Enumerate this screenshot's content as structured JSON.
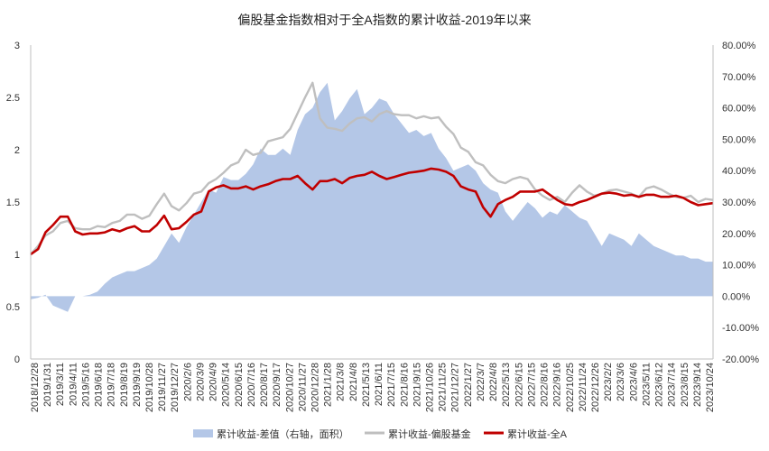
{
  "chart_data": {
    "type": "line",
    "title": "偏股基金指数相对于全A指数的累计收益-2019年以来",
    "y_left": {
      "min": 0,
      "max": 3,
      "ticks": [
        "0",
        "0.5",
        "1",
        "1.5",
        "2",
        "2.5",
        "3"
      ]
    },
    "y_right": {
      "min": -20,
      "max": 80,
      "ticks": [
        "-20.00%",
        "-10.00%",
        "0.00%",
        "10.00%",
        "20.00%",
        "30.00%",
        "40.00%",
        "50.00%",
        "60.00%",
        "70.00%",
        "80.00%"
      ]
    },
    "x_tick_labels": [
      "2018/12/28",
      "2019/1/31",
      "2019/3/11",
      "2019/4/11",
      "2019/5/16",
      "2019/6/18",
      "2019/7/18",
      "2019/8/19",
      "2019/9/19",
      "2019/10/28",
      "2019/11/27",
      "2019/12/27",
      "2020/2/6",
      "2020/3/9",
      "2020/4/9",
      "2020/5/14",
      "2020/6/15",
      "2020/7/16",
      "2020/8/17",
      "2020/9/17",
      "2020/10/27",
      "2020/11/27",
      "2020/12/28",
      "2021/1/28",
      "2021/3/8",
      "2021/4/8",
      "2021/5/13",
      "2021/6/11",
      "2021/7/15",
      "2021/8/16",
      "2021/9/15",
      "2021/10/26",
      "2021/11/25",
      "2021/12/27",
      "2022/1/27",
      "2022/3/7",
      "2022/4/8",
      "2022/5/13",
      "2022/6/15",
      "2022/7/15",
      "2022/8/16",
      "2022/9/16",
      "2022/10/25",
      "2022/11/24",
      "2022/12/26",
      "2023/2/2",
      "2023/3/6",
      "2023/4/6",
      "2023/5/11",
      "2023/6/12",
      "2023/7/14",
      "2023/8/15",
      "2023/9/14",
      "2023/10/24"
    ],
    "series": [
      {
        "name": "累计收益-差值（右轴，面积）",
        "axis": "right",
        "kind": "area",
        "color": "#b4c7e7",
        "values": [
          -1.0,
          -0.5,
          0.5,
          -3.0,
          -4.0,
          -5.0,
          0,
          0,
          0.5,
          1.5,
          4,
          6,
          7,
          8,
          8,
          9,
          10,
          12,
          16,
          20,
          17,
          22,
          26,
          30,
          34,
          33,
          38,
          37,
          37,
          39,
          42,
          47,
          45,
          45,
          47,
          45,
          53,
          58,
          60,
          65,
          68,
          56,
          59,
          63,
          66,
          58,
          60,
          63,
          62,
          58,
          55,
          52,
          53,
          51,
          52,
          47,
          44,
          40,
          41,
          42,
          40,
          36,
          34,
          33,
          27,
          24,
          27,
          30,
          28,
          25,
          27,
          26,
          29,
          27,
          25,
          24,
          20,
          16,
          20,
          19,
          18,
          16,
          20,
          18,
          16,
          15,
          14,
          13,
          13,
          12,
          12,
          11,
          11
        ]
      },
      {
        "name": "累计收益-偏股基金",
        "axis": "left",
        "kind": "line",
        "color": "#bfbfbf",
        "values": [
          1.0,
          1.08,
          1.18,
          1.22,
          1.3,
          1.32,
          1.25,
          1.24,
          1.24,
          1.27,
          1.26,
          1.3,
          1.32,
          1.38,
          1.38,
          1.34,
          1.37,
          1.48,
          1.58,
          1.46,
          1.42,
          1.49,
          1.58,
          1.6,
          1.68,
          1.72,
          1.78,
          1.85,
          1.88,
          2.0,
          1.95,
          1.97,
          2.08,
          2.1,
          2.12,
          2.2,
          2.35,
          2.5,
          2.64,
          2.3,
          2.21,
          2.2,
          2.18,
          2.25,
          2.3,
          2.31,
          2.27,
          2.34,
          2.37,
          2.34,
          2.33,
          2.33,
          2.3,
          2.32,
          2.3,
          2.31,
          2.22,
          2.15,
          2.02,
          1.98,
          1.88,
          1.85,
          1.76,
          1.7,
          1.68,
          1.72,
          1.74,
          1.72,
          1.62,
          1.56,
          1.52,
          1.55,
          1.5,
          1.59,
          1.66,
          1.6,
          1.56,
          1.58,
          1.61,
          1.62,
          1.6,
          1.58,
          1.55,
          1.63,
          1.65,
          1.62,
          1.58,
          1.55,
          1.54,
          1.56,
          1.5,
          1.53,
          1.52
        ]
      },
      {
        "name": "累计收益-全A",
        "axis": "left",
        "kind": "line",
        "color": "#c00000",
        "values": [
          1.0,
          1.05,
          1.21,
          1.28,
          1.36,
          1.36,
          1.22,
          1.19,
          1.2,
          1.2,
          1.21,
          1.24,
          1.22,
          1.25,
          1.27,
          1.22,
          1.22,
          1.28,
          1.37,
          1.24,
          1.25,
          1.31,
          1.38,
          1.41,
          1.6,
          1.64,
          1.66,
          1.63,
          1.63,
          1.65,
          1.62,
          1.65,
          1.67,
          1.7,
          1.72,
          1.72,
          1.75,
          1.68,
          1.62,
          1.7,
          1.7,
          1.72,
          1.68,
          1.73,
          1.75,
          1.76,
          1.79,
          1.75,
          1.72,
          1.74,
          1.76,
          1.78,
          1.79,
          1.8,
          1.82,
          1.81,
          1.79,
          1.75,
          1.65,
          1.62,
          1.6,
          1.45,
          1.36,
          1.48,
          1.52,
          1.55,
          1.6,
          1.6,
          1.6,
          1.62,
          1.57,
          1.52,
          1.48,
          1.47,
          1.5,
          1.52,
          1.55,
          1.58,
          1.59,
          1.58,
          1.56,
          1.57,
          1.55,
          1.57,
          1.57,
          1.55,
          1.55,
          1.56,
          1.54,
          1.5,
          1.47,
          1.48,
          1.49
        ]
      }
    ],
    "legend_position": "bottom",
    "grid": false
  }
}
